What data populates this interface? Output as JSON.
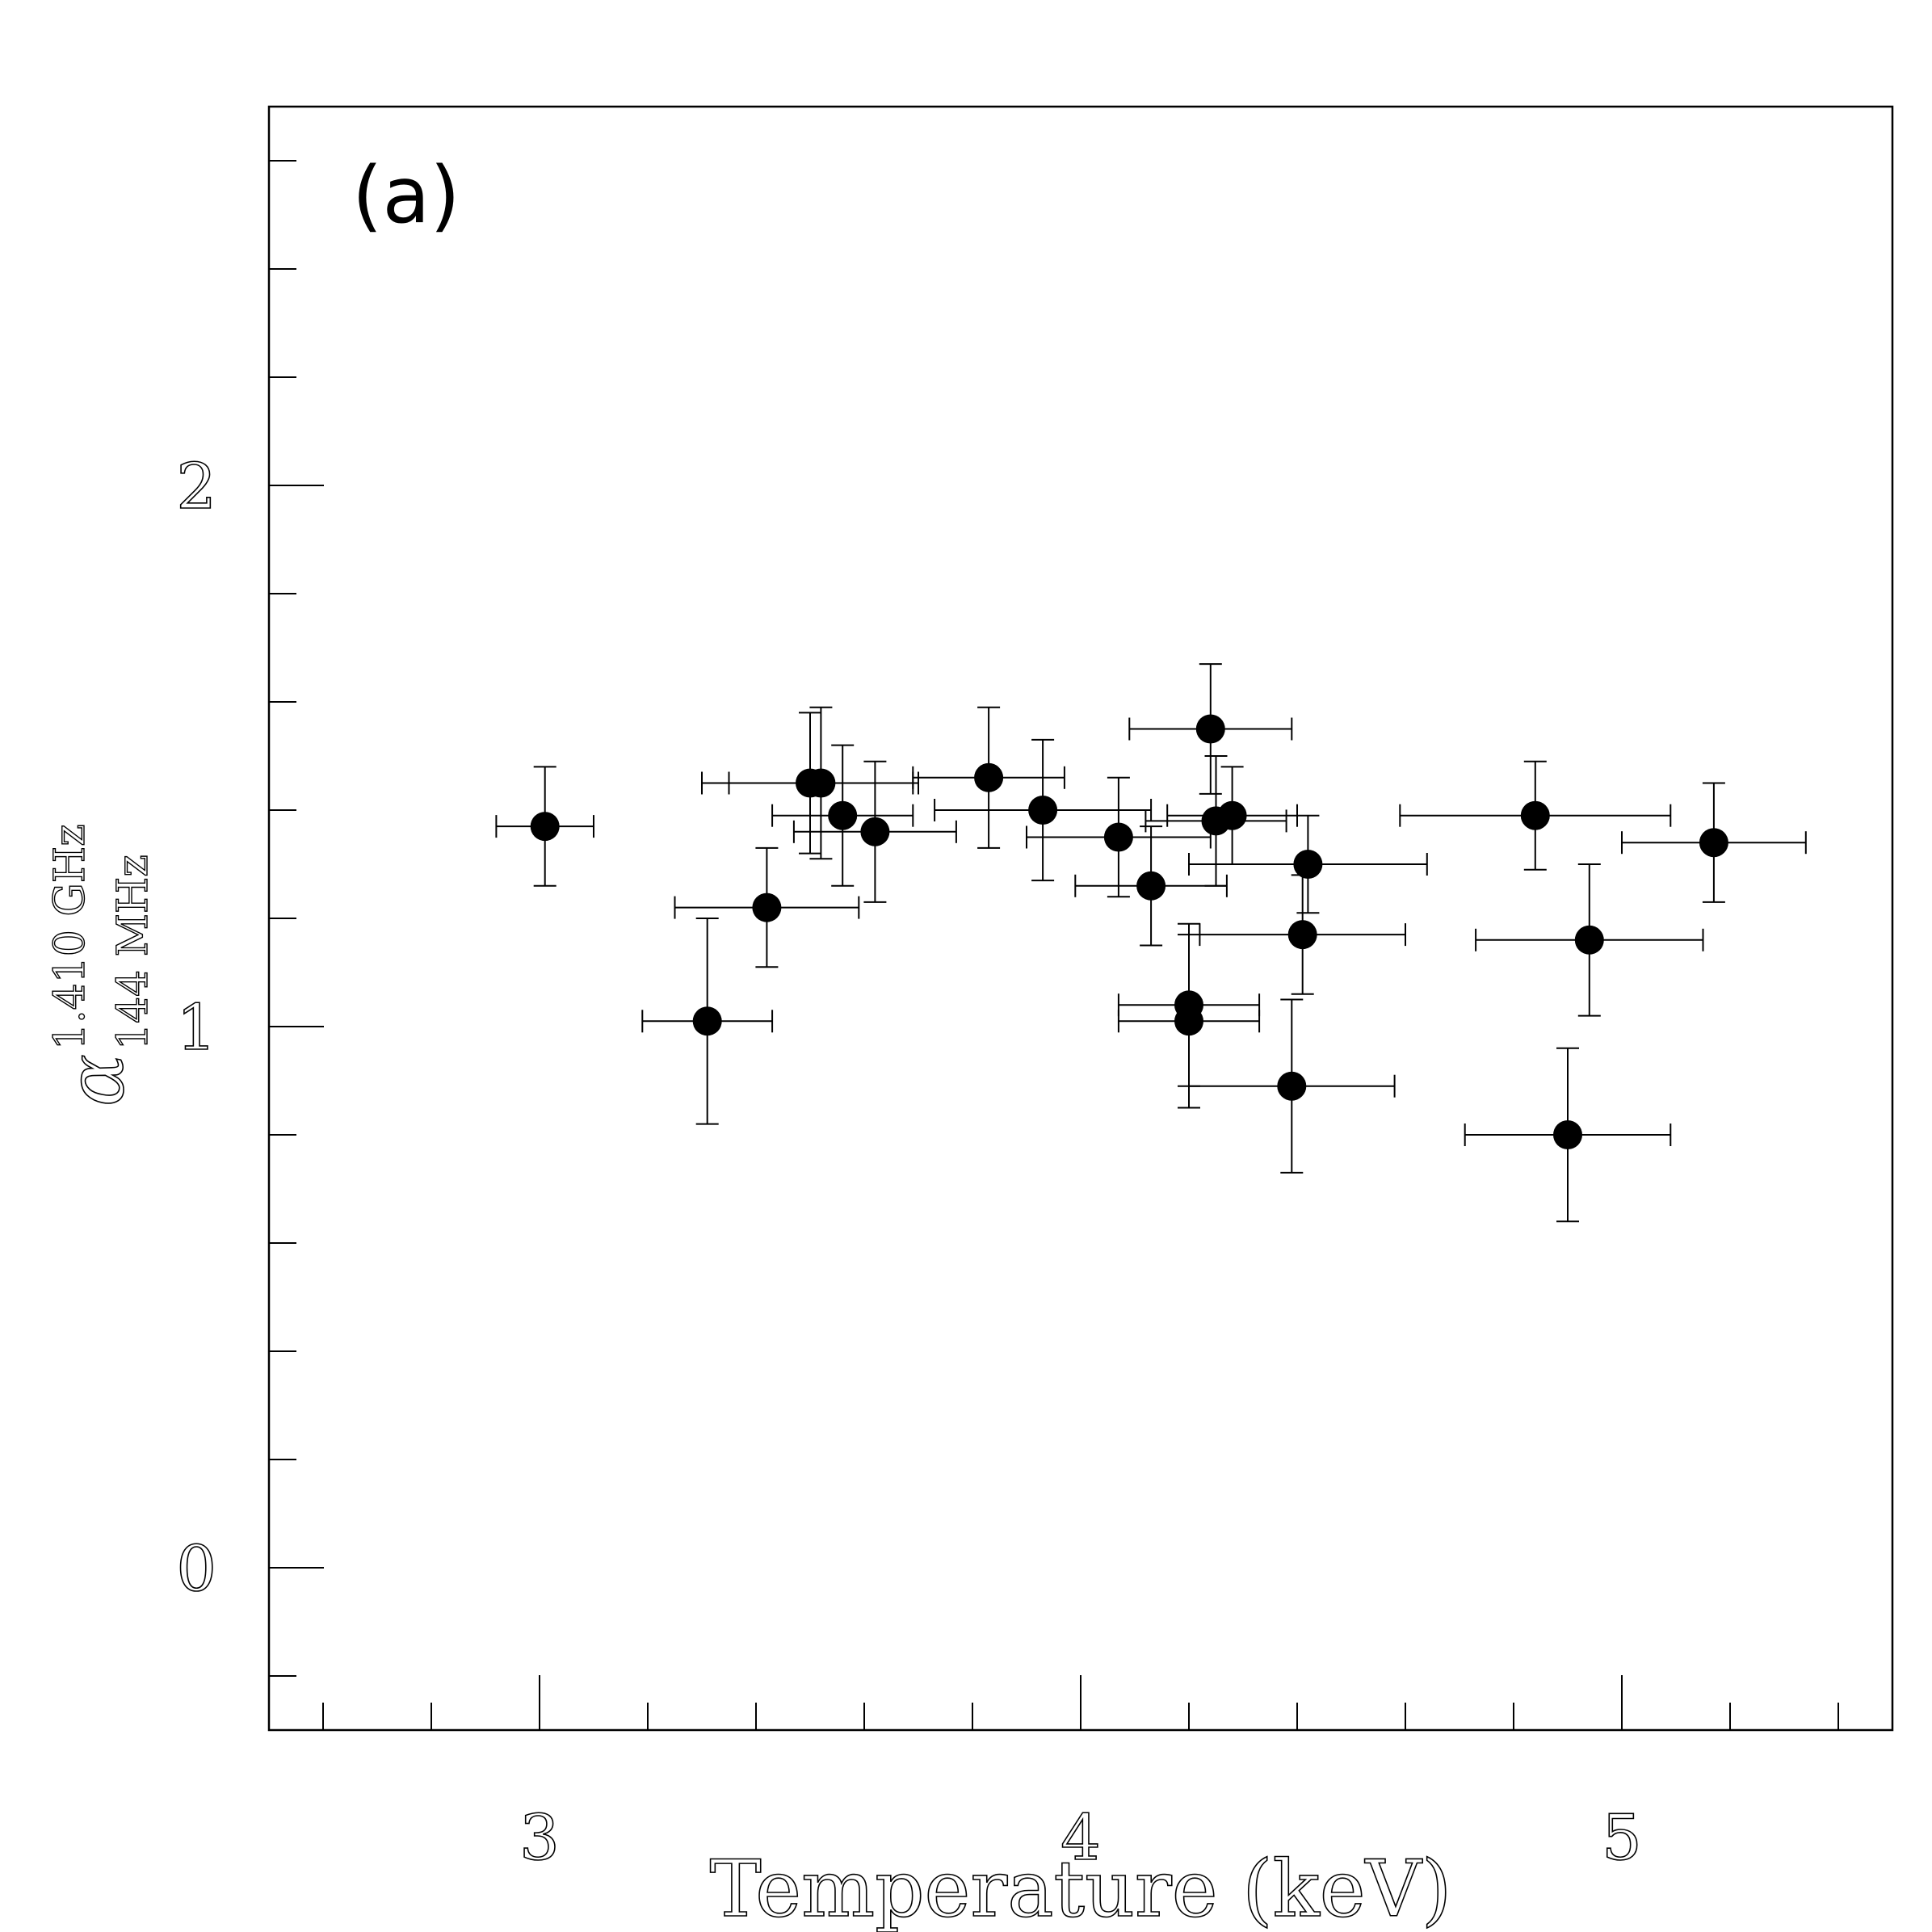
{
  "chart_data": {
    "type": "scatter",
    "panel_label": "(a)",
    "xlabel": "Temperature (keV)",
    "ylabel": {
      "symbol": "α",
      "superscript": "1.410 GHz",
      "subscript": "144 MHz"
    },
    "xlim": [
      2.5,
      5.5
    ],
    "ylim": [
      -0.3,
      2.7
    ],
    "x_major_ticks": [
      3,
      4,
      5
    ],
    "x_tick_labels": [
      "3",
      "4",
      "5"
    ],
    "x_minor_step": 0.2,
    "y_major_ticks": [
      0,
      1,
      2
    ],
    "y_tick_labels": [
      "0",
      "1",
      "2"
    ],
    "y_minor_step": 0.2,
    "grid": false,
    "points": [
      {
        "x": 3.01,
        "y": 1.37,
        "xerr": 0.09,
        "yerr": 0.11
      },
      {
        "x": 3.31,
        "y": 1.01,
        "xerr": 0.12,
        "yerr": 0.19
      },
      {
        "x": 3.42,
        "y": 1.22,
        "xerr": 0.17,
        "yerr": 0.11
      },
      {
        "x": 3.5,
        "y": 1.45,
        "xerr": 0.2,
        "yerr": 0.13
      },
      {
        "x": 3.52,
        "y": 1.45,
        "xerr": 0.17,
        "yerr": 0.14
      },
      {
        "x": 3.56,
        "y": 1.39,
        "xerr": 0.13,
        "yerr": 0.13
      },
      {
        "x": 3.62,
        "y": 1.36,
        "xerr": 0.15,
        "yerr": 0.13
      },
      {
        "x": 3.83,
        "y": 1.46,
        "xerr": 0.14,
        "yerr": 0.13
      },
      {
        "x": 3.93,
        "y": 1.4,
        "xerr": 0.2,
        "yerr": 0.13
      },
      {
        "x": 4.07,
        "y": 1.35,
        "xerr": 0.17,
        "yerr": 0.11
      },
      {
        "x": 4.13,
        "y": 1.26,
        "xerr": 0.14,
        "yerr": 0.11
      },
      {
        "x": 4.2,
        "y": 1.04,
        "xerr": 0.13,
        "yerr": 0.15
      },
      {
        "x": 4.2,
        "y": 1.01,
        "xerr": 0.13,
        "yerr": 0.16
      },
      {
        "x": 4.24,
        "y": 1.55,
        "xerr": 0.15,
        "yerr": 0.12
      },
      {
        "x": 4.25,
        "y": 1.38,
        "xerr": 0.13,
        "yerr": 0.12
      },
      {
        "x": 4.28,
        "y": 1.39,
        "xerr": 0.12,
        "yerr": 0.09
      },
      {
        "x": 4.39,
        "y": 0.89,
        "xerr": 0.19,
        "yerr": 0.16
      },
      {
        "x": 4.42,
        "y": 1.3,
        "xerr": 0.22,
        "yerr": 0.09
      },
      {
        "x": 4.41,
        "y": 1.17,
        "xerr": 0.19,
        "yerr": 0.11
      },
      {
        "x": 4.84,
        "y": 1.39,
        "xerr": 0.25,
        "yerr": 0.1
      },
      {
        "x": 4.9,
        "y": 0.8,
        "xerr": 0.19,
        "yerr": 0.16
      },
      {
        "x": 4.94,
        "y": 1.16,
        "xerr": 0.21,
        "yerr": 0.14
      },
      {
        "x": 5.17,
        "y": 1.34,
        "xerr": 0.17,
        "yerr": 0.11
      }
    ]
  }
}
